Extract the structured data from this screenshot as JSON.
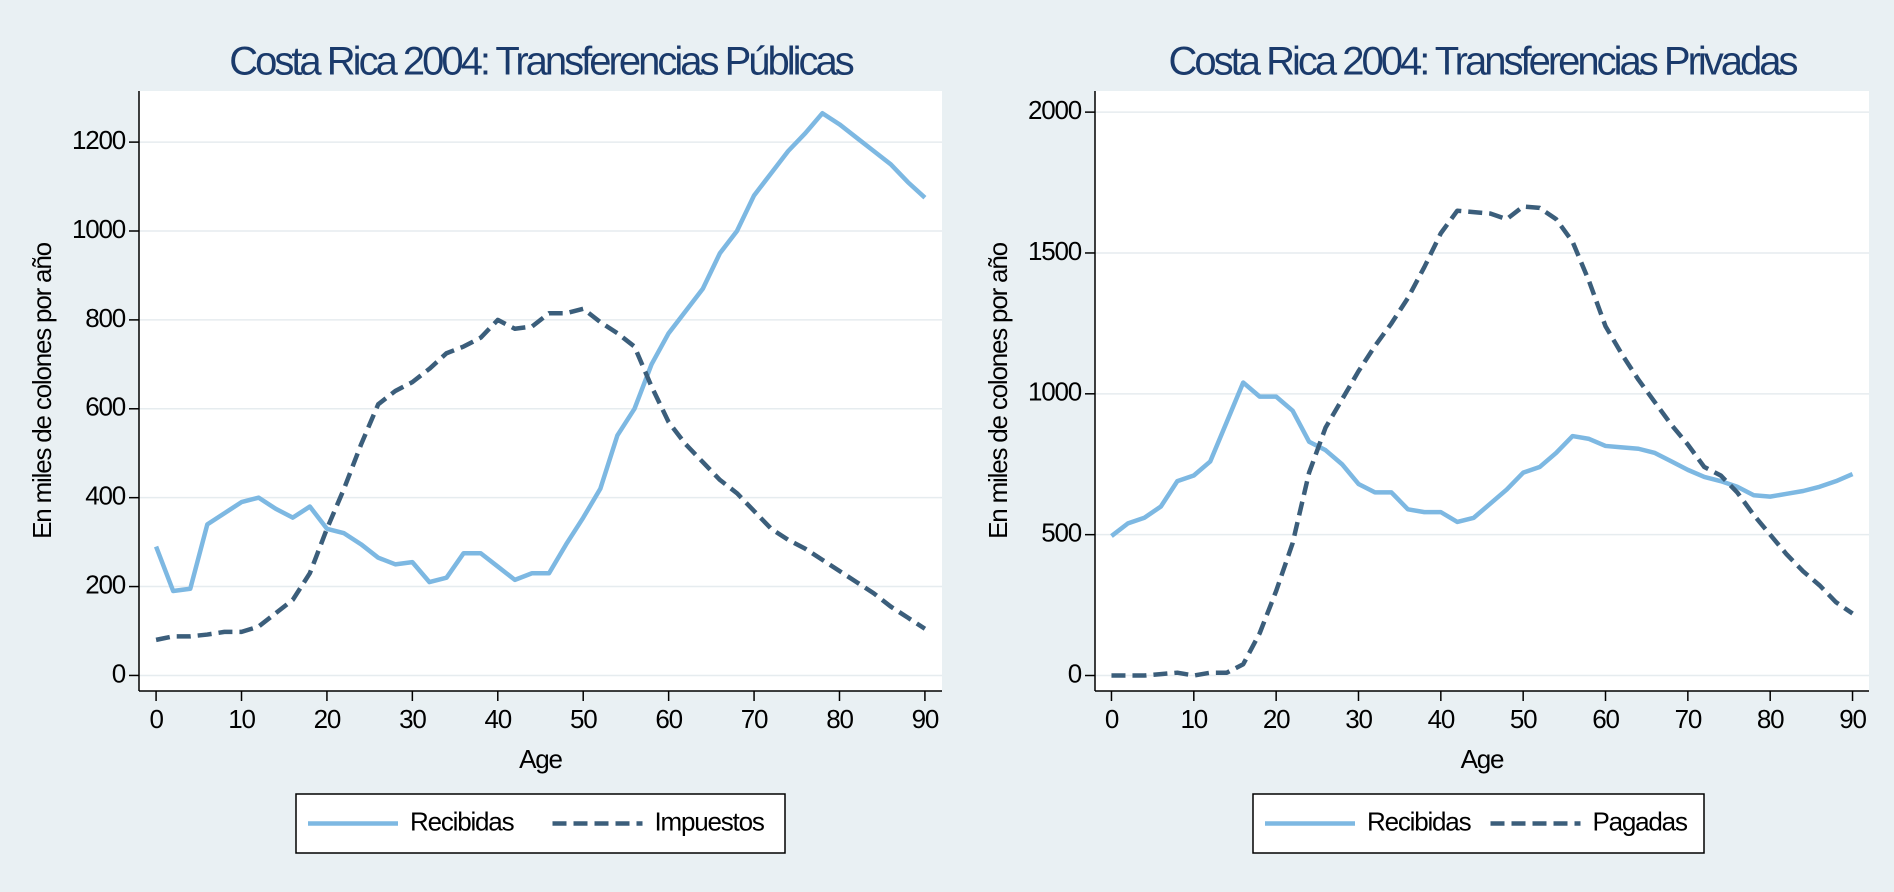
{
  "chart_data": [
    {
      "type": "line",
      "title": "Costa Rica 2004: Transferencias Públicas",
      "xlabel": "Age",
      "ylabel": "En miles de colones por año",
      "x": [
        0,
        2,
        4,
        6,
        8,
        10,
        12,
        14,
        16,
        18,
        20,
        22,
        24,
        26,
        28,
        30,
        32,
        34,
        36,
        38,
        40,
        42,
        44,
        46,
        48,
        50,
        52,
        54,
        56,
        58,
        60,
        62,
        64,
        66,
        68,
        70,
        72,
        74,
        76,
        78,
        80,
        82,
        84,
        86,
        88,
        90
      ],
      "series": [
        {
          "name": "Recibidas",
          "color": "#7db8e2",
          "dash": false,
          "values": [
            290,
            190,
            195,
            340,
            365,
            390,
            400,
            375,
            355,
            380,
            330,
            320,
            295,
            265,
            250,
            255,
            210,
            220,
            275,
            275,
            245,
            215,
            230,
            230,
            295,
            355,
            420,
            540,
            600,
            700,
            770,
            820,
            870,
            950,
            1000,
            1080,
            1130,
            1180,
            1220,
            1265,
            1240,
            1210,
            1180,
            1150,
            1110,
            1075
          ]
        },
        {
          "name": "Impuestos",
          "color": "#3b5e7b",
          "dash": true,
          "values": [
            80,
            88,
            88,
            92,
            98,
            98,
            110,
            140,
            170,
            230,
            330,
            420,
            520,
            610,
            640,
            660,
            690,
            725,
            740,
            760,
            800,
            780,
            785,
            815,
            815,
            825,
            795,
            770,
            740,
            650,
            570,
            520,
            480,
            440,
            410,
            370,
            330,
            305,
            285,
            260,
            235,
            210,
            185,
            155,
            130,
            105
          ]
        }
      ],
      "xlim": [
        -2,
        92
      ],
      "xticks": [
        0,
        10,
        20,
        30,
        40,
        50,
        60,
        70,
        80,
        90
      ],
      "ylim": [
        -35,
        1315
      ],
      "yticks": [
        0,
        200,
        400,
        600,
        800,
        1000,
        1200
      ],
      "grid": true,
      "legend": "bottom"
    },
    {
      "type": "line",
      "title": "Costa Rica 2004: Transferencias Privadas",
      "xlabel": "Age",
      "ylabel": "En miles de colones por año",
      "x": [
        0,
        2,
        4,
        6,
        8,
        10,
        12,
        14,
        16,
        18,
        20,
        22,
        24,
        26,
        28,
        30,
        32,
        34,
        36,
        38,
        40,
        42,
        44,
        46,
        48,
        50,
        52,
        54,
        56,
        58,
        60,
        62,
        64,
        66,
        68,
        70,
        72,
        74,
        76,
        78,
        80,
        82,
        84,
        86,
        88,
        90
      ],
      "series": [
        {
          "name": "Recibidas",
          "color": "#7db8e2",
          "dash": false,
          "values": [
            495,
            540,
            560,
            600,
            690,
            710,
            760,
            900,
            1040,
            990,
            990,
            940,
            830,
            800,
            750,
            680,
            650,
            650,
            590,
            580,
            580,
            545,
            560,
            610,
            660,
            720,
            740,
            790,
            850,
            840,
            815,
            810,
            805,
            790,
            760,
            730,
            705,
            690,
            670,
            640,
            635,
            645,
            655,
            670,
            690,
            715
          ]
        },
        {
          "name": "Pagadas",
          "color": "#3b5e7b",
          "dash": true,
          "values": [
            0,
            0,
            0,
            5,
            10,
            0,
            10,
            10,
            40,
            150,
            300,
            470,
            720,
            880,
            980,
            1080,
            1170,
            1250,
            1340,
            1450,
            1570,
            1650,
            1645,
            1640,
            1620,
            1665,
            1660,
            1620,
            1540,
            1400,
            1240,
            1140,
            1050,
            970,
            890,
            820,
            740,
            710,
            650,
            570,
            500,
            430,
            370,
            320,
            260,
            220
          ]
        }
      ],
      "xlim": [
        -2,
        92
      ],
      "xticks": [
        0,
        10,
        20,
        30,
        40,
        50,
        60,
        70,
        80,
        90
      ],
      "ylim": [
        -55,
        2075
      ],
      "yticks": [
        0,
        500,
        1000,
        1500,
        2000
      ],
      "grid": true,
      "legend": "bottom"
    }
  ]
}
